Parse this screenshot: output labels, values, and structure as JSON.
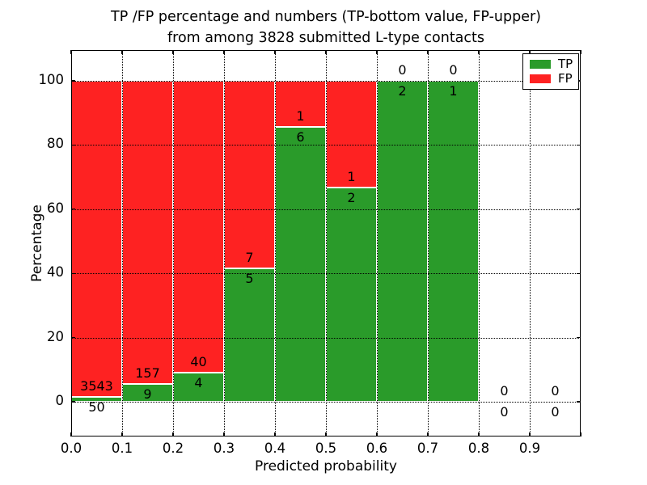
{
  "figure": {
    "title_line1": "TP /FP percentage and numbers (TP-bottom value, FP-upper)",
    "title_line2": "from among 3828 submitted L-type contacts",
    "xlabel": "Predicted probability",
    "ylabel": "Percentage"
  },
  "legend": {
    "position": "upper right",
    "items": [
      {
        "label": "TP",
        "color": "#2a9b2a"
      },
      {
        "label": "FP",
        "color": "#fe2222"
      }
    ]
  },
  "chart_data": {
    "type": "bar",
    "variant": "stacked-percentage-histogram",
    "title": "TP /FP percentage and numbers (TP-bottom value, FP-upper) from among 3828 submitted L-type contacts",
    "xlabel": "Predicted probability",
    "ylabel": "Percentage",
    "total_submitted": 3828,
    "xlim": [
      0.0,
      1.0
    ],
    "bin_width": 0.1,
    "x_tick_labels": [
      "0.0",
      "0.1",
      "0.2",
      "0.3",
      "0.4",
      "0.5",
      "0.6",
      "0.7",
      "0.8",
      "0.9"
    ],
    "y_ticks": [
      0,
      20,
      40,
      60,
      80,
      100
    ],
    "grid": "dotted",
    "legend_position": "upper right",
    "bins": [
      {
        "range": [
          0.0,
          0.1
        ],
        "tp": 50,
        "fp": 3543,
        "tp_pct": 1.39,
        "fp_pct": 98.61
      },
      {
        "range": [
          0.1,
          0.2
        ],
        "tp": 9,
        "fp": 157,
        "tp_pct": 5.42,
        "fp_pct": 94.58
      },
      {
        "range": [
          0.2,
          0.3
        ],
        "tp": 4,
        "fp": 40,
        "tp_pct": 9.09,
        "fp_pct": 90.91
      },
      {
        "range": [
          0.3,
          0.4
        ],
        "tp": 5,
        "fp": 7,
        "tp_pct": 41.67,
        "fp_pct": 58.33
      },
      {
        "range": [
          0.4,
          0.5
        ],
        "tp": 6,
        "fp": 1,
        "tp_pct": 85.71,
        "fp_pct": 14.29
      },
      {
        "range": [
          0.5,
          0.6
        ],
        "tp": 2,
        "fp": 1,
        "tp_pct": 66.67,
        "fp_pct": 33.33
      },
      {
        "range": [
          0.6,
          0.7
        ],
        "tp": 2,
        "fp": 0,
        "tp_pct": 100,
        "fp_pct": 0
      },
      {
        "range": [
          0.7,
          0.8
        ],
        "tp": 1,
        "fp": 0,
        "tp_pct": 100,
        "fp_pct": 0
      },
      {
        "range": [
          0.8,
          0.9
        ],
        "tp": 0,
        "fp": 0,
        "tp_pct": null,
        "fp_pct": null
      },
      {
        "range": [
          0.9,
          1.0
        ],
        "tp": 0,
        "fp": 0,
        "tp_pct": null,
        "fp_pct": null
      }
    ],
    "series": [
      {
        "name": "TP",
        "color": "#2a9b2a",
        "counts": [
          50,
          9,
          4,
          5,
          6,
          2,
          2,
          1,
          0,
          0
        ]
      },
      {
        "name": "FP",
        "color": "#fe2222",
        "counts": [
          3543,
          157,
          40,
          7,
          1,
          1,
          0,
          0,
          0,
          0
        ]
      }
    ]
  }
}
